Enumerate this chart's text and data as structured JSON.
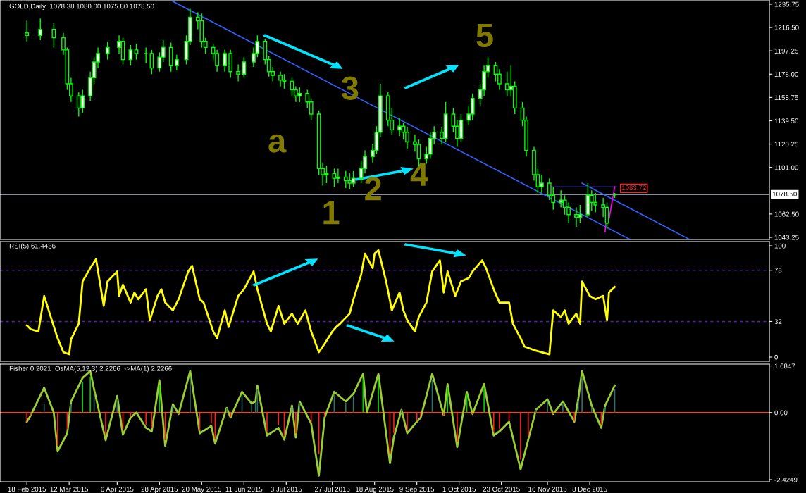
{
  "chart_data": [
    {
      "type": "candlestick",
      "title": "GOLD,Daily  1078.38 1080.00 1075.80 1078.50",
      "color": "#00ff00",
      "x": [
        "2015-02-18",
        "2015-02-25",
        "2015-03-04",
        "2015-03-09",
        "2015-03-11",
        "2015-03-13",
        "2015-03-17",
        "2015-03-19",
        "2015-03-23",
        "2015-03-25",
        "2015-03-27",
        "2015-04-01",
        "2015-04-07",
        "2015-04-09",
        "2015-04-13",
        "2015-04-16",
        "2015-04-21",
        "2015-04-24",
        "2015-04-28",
        "2015-04-30",
        "2015-05-04",
        "2015-05-07",
        "2015-05-12",
        "2015-05-14",
        "2015-05-18",
        "2015-05-20",
        "2015-05-22",
        "2015-05-26",
        "2015-05-28",
        "2015-06-01",
        "2015-06-04",
        "2015-06-08",
        "2015-06-11",
        "2015-06-16",
        "2015-06-18",
        "2015-06-22",
        "2015-06-24",
        "2015-06-26",
        "2015-06-30",
        "2015-07-02",
        "2015-07-06",
        "2015-07-08",
        "2015-07-10",
        "2015-07-14",
        "2015-07-16",
        "2015-07-20",
        "2015-07-22",
        "2015-07-24",
        "2015-07-28",
        "2015-07-30",
        "2015-08-03",
        "2015-08-05",
        "2015-08-07",
        "2015-08-11",
        "2015-08-13",
        "2015-08-17",
        "2015-08-19",
        "2015-08-21",
        "2015-08-25",
        "2015-08-27",
        "2015-08-31",
        "2015-09-02",
        "2015-09-04",
        "2015-09-08",
        "2015-09-10",
        "2015-09-14",
        "2015-09-16",
        "2015-09-18",
        "2015-09-22",
        "2015-09-24",
        "2015-09-28",
        "2015-09-30",
        "2015-10-02",
        "2015-10-06",
        "2015-10-08",
        "2015-10-12",
        "2015-10-14",
        "2015-10-16",
        "2015-10-20",
        "2015-10-22",
        "2015-10-26",
        "2015-10-28",
        "2015-10-30",
        "2015-11-03",
        "2015-11-05",
        "2015-11-09",
        "2015-11-11",
        "2015-11-13",
        "2015-11-17",
        "2015-11-19",
        "2015-11-23",
        "2015-11-25",
        "2015-11-27",
        "2015-12-01",
        "2015-12-03",
        "2015-12-07",
        "2015-12-09",
        "2015-12-11",
        "2015-12-15",
        "2015-12-17",
        "2015-12-21"
      ],
      "ohlc": [
        [
          1212,
          1222,
          1205,
          1210
        ],
        [
          1210,
          1224,
          1206,
          1215
        ],
        [
          1215,
          1220,
          1200,
          1208
        ],
        [
          1208,
          1212,
          1194,
          1198
        ],
        [
          1198,
          1200,
          1165,
          1170
        ],
        [
          1170,
          1175,
          1155,
          1160
        ],
        [
          1160,
          1163,
          1143,
          1150
        ],
        [
          1150,
          1165,
          1146,
          1160
        ],
        [
          1160,
          1180,
          1156,
          1175
        ],
        [
          1175,
          1192,
          1170,
          1188
        ],
        [
          1188,
          1200,
          1183,
          1195
        ],
        [
          1195,
          1205,
          1190,
          1200
        ],
        [
          1200,
          1210,
          1195,
          1205
        ],
        [
          1205,
          1208,
          1186,
          1190
        ],
        [
          1190,
          1202,
          1185,
          1198
        ],
        [
          1198,
          1203,
          1190,
          1195
        ],
        [
          1195,
          1200,
          1187,
          1195
        ],
        [
          1195,
          1198,
          1178,
          1183
        ],
        [
          1183,
          1196,
          1180,
          1192
        ],
        [
          1192,
          1206,
          1188,
          1200
        ],
        [
          1200,
          1204,
          1180,
          1185
        ],
        [
          1185,
          1194,
          1181,
          1190
        ],
        [
          1190,
          1210,
          1186,
          1205
        ],
        [
          1205,
          1232,
          1202,
          1225
        ],
        [
          1225,
          1229,
          1215,
          1222
        ],
        [
          1222,
          1228,
          1200,
          1205
        ],
        [
          1205,
          1208,
          1195,
          1200
        ],
        [
          1200,
          1203,
          1190,
          1195
        ],
        [
          1195,
          1198,
          1180,
          1185
        ],
        [
          1185,
          1198,
          1180,
          1195
        ],
        [
          1195,
          1198,
          1175,
          1180
        ],
        [
          1180,
          1186,
          1172,
          1178
        ],
        [
          1178,
          1192,
          1175,
          1188
        ],
        [
          1188,
          1200,
          1184,
          1195
        ],
        [
          1195,
          1210,
          1192,
          1205
        ],
        [
          1205,
          1207,
          1186,
          1190
        ],
        [
          1190,
          1193,
          1176,
          1180
        ],
        [
          1180,
          1184,
          1172,
          1177
        ],
        [
          1177,
          1180,
          1168,
          1173
        ],
        [
          1173,
          1178,
          1166,
          1172
        ],
        [
          1172,
          1175,
          1160,
          1165
        ],
        [
          1165,
          1168,
          1155,
          1160
        ],
        [
          1160,
          1167,
          1155,
          1162
        ],
        [
          1162,
          1165,
          1150,
          1155
        ],
        [
          1155,
          1158,
          1140,
          1145
        ],
        [
          1145,
          1148,
          1095,
          1100
        ],
        [
          1100,
          1105,
          1086,
          1095
        ],
        [
          1095,
          1102,
          1088,
          1096
        ],
        [
          1096,
          1100,
          1085,
          1092
        ],
        [
          1092,
          1100,
          1088,
          1093
        ],
        [
          1093,
          1098,
          1084,
          1090
        ],
        [
          1090,
          1096,
          1083,
          1088
        ],
        [
          1088,
          1098,
          1085,
          1092
        ],
        [
          1092,
          1106,
          1088,
          1100
        ],
        [
          1100,
          1115,
          1096,
          1110
        ],
        [
          1110,
          1120,
          1105,
          1115
        ],
        [
          1115,
          1135,
          1112,
          1130
        ],
        [
          1130,
          1170,
          1126,
          1160
        ],
        [
          1160,
          1163,
          1135,
          1140
        ],
        [
          1140,
          1150,
          1128,
          1132
        ],
        [
          1132,
          1142,
          1127,
          1135
        ],
        [
          1135,
          1138,
          1124,
          1130
        ],
        [
          1130,
          1134,
          1116,
          1122
        ],
        [
          1122,
          1128,
          1114,
          1120
        ],
        [
          1120,
          1124,
          1102,
          1108
        ],
        [
          1108,
          1118,
          1104,
          1112
        ],
        [
          1112,
          1130,
          1108,
          1125
        ],
        [
          1125,
          1135,
          1120,
          1130
        ],
        [
          1130,
          1134,
          1120,
          1125
        ],
        [
          1125,
          1155,
          1122,
          1145
        ],
        [
          1145,
          1150,
          1130,
          1135
        ],
        [
          1135,
          1140,
          1118,
          1125
        ],
        [
          1125,
          1145,
          1122,
          1140
        ],
        [
          1140,
          1152,
          1136,
          1145
        ],
        [
          1145,
          1162,
          1140,
          1158
        ],
        [
          1158,
          1170,
          1152,
          1165
        ],
        [
          1165,
          1185,
          1160,
          1180
        ],
        [
          1180,
          1192,
          1175,
          1185
        ],
        [
          1185,
          1188,
          1172,
          1178
        ],
        [
          1178,
          1182,
          1165,
          1170
        ],
        [
          1170,
          1180,
          1160,
          1165
        ],
        [
          1165,
          1185,
          1160,
          1168
        ],
        [
          1168,
          1172,
          1145,
          1150
        ],
        [
          1150,
          1155,
          1135,
          1140
        ],
        [
          1140,
          1143,
          1110,
          1115
        ],
        [
          1115,
          1118,
          1090,
          1095
        ],
        [
          1095,
          1100,
          1080,
          1085
        ],
        [
          1085,
          1095,
          1080,
          1088
        ],
        [
          1088,
          1092,
          1074,
          1078
        ],
        [
          1078,
          1085,
          1066,
          1072
        ],
        [
          1072,
          1082,
          1068,
          1074
        ],
        [
          1074,
          1078,
          1062,
          1068
        ],
        [
          1068,
          1072,
          1055,
          1062
        ],
        [
          1062,
          1068,
          1052,
          1060
        ],
        [
          1060,
          1070,
          1055,
          1062
        ],
        [
          1062,
          1088,
          1060,
          1078
        ],
        [
          1078,
          1082,
          1065,
          1072
        ],
        [
          1072,
          1080,
          1064,
          1070
        ],
        [
          1070,
          1076,
          1060,
          1068
        ],
        [
          1068,
          1072,
          1050,
          1055
        ],
        [
          1078.38,
          1080,
          1075.8,
          1078.5
        ]
      ],
      "series": [
        {
          "type": "line",
          "color": "#3060ff",
          "x": [
            "2015-05-05",
            "2015-12-29"
          ],
          "values": [
            1238.0,
            1041.5
          ]
        },
        {
          "type": "line",
          "color": "#3060ff",
          "x": [
            "2015-12-04",
            "2016-01-29"
          ],
          "values": [
            1088.0,
            1041.5
          ]
        },
        {
          "type": "line",
          "color": "#1c1c70",
          "x": [
            "2015-11-17",
            "2015-12-22"
          ],
          "values": [
            1085.1,
            1085.1
          ]
        },
        {
          "type": "line",
          "color": "#ff00ff",
          "x": [
            "2015-12-16",
            "2015-12-17",
            "2015-12-18",
            "2015-12-21"
          ],
          "values": [
            1048,
            1063,
            1058,
            1085
          ]
        }
      ],
      "ref_lines": [
        {
          "axis": "y",
          "value": 1078.5,
          "label": "1078.50",
          "color": "#8090a0"
        }
      ],
      "annotations": [
        {
          "text": "1083.72",
          "x": "2015-12-22",
          "y": 1083.72
        },
        "a",
        "1",
        "2",
        "3",
        "4",
        "5"
      ],
      "xlim": [
        "2015-02-04",
        "2016-03-10T12:00"
      ],
      "ylim": [
        1041.5,
        1239.2
      ],
      "yticks": [
        {
          "value": 1043.25,
          "label": "1043.25"
        },
        {
          "value": 1062.5,
          "label": "1062.50"
        },
        {
          "value": 1101,
          "label": "1101.00"
        },
        {
          "value": 1120.25,
          "label": "1120.25"
        },
        {
          "value": 1139.5,
          "label": "1139.50"
        },
        {
          "value": 1158.75,
          "label": "1158.75"
        },
        {
          "value": 1178,
          "label": "1178.00"
        },
        {
          "value": 1197.25,
          "label": "1197.25"
        },
        {
          "value": 1216.5,
          "label": "1216.50"
        },
        {
          "value": 1235.75,
          "label": "1235.75"
        }
      ],
      "tick_labels": "y"
    },
    {
      "type": "line",
      "title": "RSI(5) 61.4436",
      "series": [
        {
          "color": "#ffff00",
          "x": [
            "2015-02-18",
            "2015-02-20",
            "2015-02-24",
            "2015-02-27",
            "2015-03-03",
            "2015-03-06",
            "2015-03-09",
            "2015-03-12",
            "2015-03-13",
            "2015-03-17",
            "2015-03-19",
            "2015-03-23",
            "2015-03-26",
            "2015-03-30",
            "2015-04-01",
            "2015-04-06",
            "2015-04-07",
            "2015-04-09",
            "2015-04-13",
            "2015-04-15",
            "2015-04-17",
            "2015-04-21",
            "2015-04-23",
            "2015-04-27",
            "2015-04-29",
            "2015-05-01",
            "2015-05-05",
            "2015-05-08",
            "2015-05-13",
            "2015-05-15",
            "2015-05-19",
            "2015-05-21",
            "2015-05-26",
            "2015-05-28",
            "2015-06-01",
            "2015-06-03",
            "2015-06-08",
            "2015-06-11",
            "2015-06-16",
            "2015-06-18",
            "2015-06-23",
            "2015-06-25",
            "2015-06-29",
            "2015-07-02",
            "2015-07-06",
            "2015-07-09",
            "2015-07-13",
            "2015-07-16",
            "2015-07-20",
            "2015-07-23",
            "2015-07-27",
            "2015-07-29",
            "2015-07-31",
            "2015-08-05",
            "2015-08-07",
            "2015-08-11",
            "2015-08-13",
            "2015-08-17",
            "2015-08-18",
            "2015-08-20",
            "2015-08-24",
            "2015-08-27",
            "2015-08-31",
            "2015-09-02",
            "2015-09-04",
            "2015-09-08",
            "2015-09-10",
            "2015-09-14",
            "2015-09-17",
            "2015-09-21",
            "2015-09-23",
            "2015-09-25",
            "2015-09-29",
            "2015-10-02",
            "2015-10-06",
            "2015-10-08",
            "2015-10-13",
            "2015-10-15",
            "2015-10-19",
            "2015-10-22",
            "2015-10-27",
            "2015-10-29",
            "2015-11-02",
            "2015-11-04",
            "2015-11-09",
            "2015-11-13",
            "2015-11-17",
            "2015-11-19",
            "2015-11-23",
            "2015-11-25",
            "2015-11-27",
            "2015-12-01",
            "2015-12-03",
            "2015-12-04",
            "2015-12-08",
            "2015-12-11",
            "2015-12-15",
            "2015-12-17",
            "2015-12-18",
            "2015-12-21"
          ],
          "values": [
            28.5,
            25,
            23,
            55,
            33,
            17,
            4.4,
            2.5,
            16,
            30,
            68,
            80,
            88,
            46,
            68,
            77,
            55,
            65,
            49,
            58,
            52,
            61,
            33,
            55,
            61,
            49,
            42,
            52,
            77,
            82,
            52,
            49,
            23,
            17,
            42,
            27,
            55,
            61,
            77,
            61,
            30,
            23,
            46,
            30,
            39,
            30,
            42,
            23,
            4.4,
            12,
            23,
            27,
            30,
            39,
            52,
            74,
            93,
            80,
            93,
            96,
            68,
            42,
            58,
            42,
            33,
            23,
            36,
            49,
            77,
            87,
            58,
            77,
            55,
            68,
            71,
            77,
            87,
            80,
            61,
            49,
            49,
            30,
            17,
            9.5,
            6.3,
            4.4,
            2.5,
            42,
            36,
            42,
            30,
            39,
            30,
            68,
            55,
            52,
            55,
            33,
            58,
            63
          ]
        }
      ],
      "ref_lines": [
        {
          "axis": "y",
          "value": 78,
          "color": "#5a20a0",
          "line_style": "dashed"
        },
        {
          "axis": "y",
          "value": 32,
          "color": "#5a20a0",
          "line_style": "dashed"
        }
      ],
      "xlim": [
        "2015-02-04",
        "2016-03-10T12:00"
      ],
      "ylim": [
        -3.8,
        103.8
      ],
      "yticks": [
        0,
        32,
        78,
        100
      ],
      "tick_labels": "y"
    },
    {
      "type": "bar",
      "title": "Fisher 0.2021  OsMA(5,12,3) 2.2266  ->MA(1) 2.2266",
      "x": [
        "2015-02-18",
        "2015-02-20",
        "2015-02-27",
        "2015-03-04",
        "2015-03-06",
        "2015-03-11",
        "2015-03-13",
        "2015-03-19",
        "2015-03-23",
        "2015-03-25",
        "2015-03-31",
        "2015-04-06",
        "2015-04-09",
        "2015-04-13",
        "2015-04-16",
        "2015-04-21",
        "2015-04-24",
        "2015-04-28",
        "2015-05-01",
        "2015-05-05",
        "2015-05-08",
        "2015-05-14",
        "2015-05-19",
        "2015-05-25",
        "2015-05-27",
        "2015-06-02",
        "2015-06-04",
        "2015-06-10",
        "2015-06-15",
        "2015-06-17",
        "2015-06-18",
        "2015-06-23",
        "2015-06-29",
        "2015-07-02",
        "2015-07-06",
        "2015-07-08",
        "2015-07-10",
        "2015-07-16",
        "2015-07-20",
        "2015-07-23",
        "2015-07-28",
        "2015-08-03",
        "2015-08-07",
        "2015-08-12",
        "2015-08-14",
        "2015-08-20",
        "2015-08-26",
        "2015-08-28",
        "2015-09-01",
        "2015-09-04",
        "2015-09-09",
        "2015-09-11",
        "2015-09-17",
        "2015-09-23",
        "2015-09-25",
        "2015-09-30",
        "2015-10-05",
        "2015-10-08",
        "2015-10-14",
        "2015-10-19",
        "2015-10-22",
        "2015-10-27",
        "2015-11-02",
        "2015-11-06",
        "2015-11-10",
        "2015-11-16",
        "2015-11-19",
        "2015-11-24",
        "2015-11-30",
        "2015-12-02",
        "2015-12-04",
        "2015-12-09",
        "2015-12-14",
        "2015-12-16",
        "2015-12-21"
      ],
      "series": [
        {
          "type": "bar",
          "values": [
            -0.33,
            -0.1,
            0.3,
            0,
            -1.2,
            -0.6,
            0.3,
            1.1,
            1.3,
            0.7,
            -0.8,
            0.5,
            -0.6,
            -0.15,
            0,
            -0.45,
            -0.55,
            1.0,
            -1.0,
            0.25,
            -0.05,
            1.3,
            -0.65,
            -0.4,
            -0.95,
            0.15,
            -0.15,
            0.65,
            0.3,
            0.35,
            0.85,
            -0.7,
            -0.45,
            -0.85,
            0.2,
            -0.75,
            0.35,
            -0.35,
            -1.5,
            -0.15,
            0.65,
            0.35,
            0.6,
            1.2,
            0,
            1.2,
            -1.5,
            -0.75,
            0.1,
            -0.65,
            -0.3,
            -0.15,
            1.2,
            -0.1,
            0.9,
            -1.05,
            0.65,
            -0.05,
            0.9,
            -0.7,
            -0.6,
            -0.3,
            -1.7,
            -0.85,
            0.1,
            0.4,
            -0.05,
            0.35,
            -0.3,
            0.4,
            1.3,
            0.2,
            -0.45,
            0.2,
            0.85
          ],
          "colors": [
            "#ff2020",
            "#ff2020",
            "#2f6e6e",
            "#ff2020",
            "#ff2020",
            "#ff2020",
            "#2f6e6e",
            "#00d000",
            "#00d000",
            "#2f6e6e",
            "#ff2020",
            "#2f6e6e",
            "#ff2020",
            "#ff2020",
            "#ff2020",
            "#ff2020",
            "#ff2020",
            "#00d000",
            "#ff2020",
            "#2f6e6e",
            "#ff2020",
            "#2f6e6e",
            "#ff2020",
            "#ff2020",
            "#ff2020",
            "#2f6e6e",
            "#ff2020",
            "#2f6e6e",
            "#2f6e6e",
            "#2f6e6e",
            "#2f6e6e",
            "#ff2020",
            "#ff2020",
            "#ff2020",
            "#2f6e6e",
            "#ff2020",
            "#2f6e6e",
            "#ff2020",
            "#ff2020",
            "#ff2020",
            "#2f6e6e",
            "#2f6e6e",
            "#2f6e6e",
            "#00d000",
            "#ff2020",
            "#00d000",
            "#ff2020",
            "#ff2020",
            "#2f6e6e",
            "#ff2020",
            "#ff2020",
            "#ff2020",
            "#2f6e6e",
            "#ff2020",
            "#00d000",
            "#ff2020",
            "#00d000",
            "#ff2020",
            "#00d000",
            "#ff2020",
            "#ff2020",
            "#ff2020",
            "#ff2020",
            "#ff2020",
            "#2f6e6e",
            "#2f6e6e",
            "#ff2020",
            "#2f6e6e",
            "#ff2020",
            "#2f6e6e",
            "#2f6e6e",
            "#2f6e6e",
            "#ff2020",
            "#2f6e6e",
            "#2f6e6e"
          ]
        },
        {
          "type": "line",
          "color": "#9acd32",
          "values": [
            -0.33,
            -0.1,
            0.9,
            0,
            -1.4,
            -0.75,
            0.4,
            1.25,
            1.5,
            0.83,
            -1.0,
            0.6,
            -0.8,
            -0.18,
            0,
            -0.55,
            -0.68,
            1.17,
            -1.2,
            0.3,
            -0.05,
            1.5,
            -0.75,
            -0.48,
            -1.12,
            0.17,
            -0.18,
            0.75,
            0.33,
            0.4,
            0.98,
            -0.83,
            -0.55,
            -0.98,
            0.25,
            -0.9,
            0.4,
            -0.4,
            -2.28,
            -0.18,
            0.75,
            0.4,
            0.68,
            1.4,
            0,
            1.4,
            -1.83,
            -0.9,
            0.1,
            -0.75,
            -0.33,
            -0.18,
            1.4,
            -0.1,
            1.03,
            -1.25,
            0.75,
            -0.05,
            1.03,
            -0.83,
            -0.68,
            -0.33,
            -2.05,
            -0.98,
            0.1,
            0.48,
            -0.05,
            0.4,
            -0.33,
            0.48,
            1.5,
            0.25,
            -0.55,
            0.25,
            0.98
          ]
        }
      ],
      "ref_lines": [
        {
          "axis": "y",
          "value": 0,
          "color": "#ff4000"
        }
      ],
      "xlim": [
        "2015-02-04",
        "2016-03-10T12:00"
      ],
      "ylim": [
        -2.5,
        1.75
      ],
      "yticks": [
        -2.4249,
        {
          "value": 0,
          "label": "0.00"
        },
        1.6847
      ],
      "xticks": [
        {
          "value": "2015-02-18",
          "label": "18 Feb 2015"
        },
        {
          "value": "2015-03-12",
          "label": "12 Mar 2015"
        },
        {
          "value": "2015-04-06",
          "label": "6 Apr 2015"
        },
        {
          "value": "2015-04-28",
          "label": "28 Apr 2015"
        },
        {
          "value": "2015-05-20",
          "label": "20 May 2015"
        },
        {
          "value": "2015-06-11",
          "label": "11 Jun 2015"
        },
        {
          "value": "2015-07-03",
          "label": "3 Jul 2015"
        },
        {
          "value": "2015-07-27",
          "label": "27 Jul 2015"
        },
        {
          "value": "2015-08-18",
          "label": "18 Aug 2015"
        },
        {
          "value": "2015-09-09",
          "label": "9 Sep 2015"
        },
        {
          "value": "2015-10-01",
          "label": "1 Oct 2015"
        },
        {
          "value": "2015-10-23",
          "label": "23 Oct 2015"
        },
        {
          "value": "2015-11-16",
          "label": "16 Nov 2015"
        },
        {
          "value": "2015-12-08",
          "label": "8 Dec 2015"
        }
      ]
    }
  ]
}
